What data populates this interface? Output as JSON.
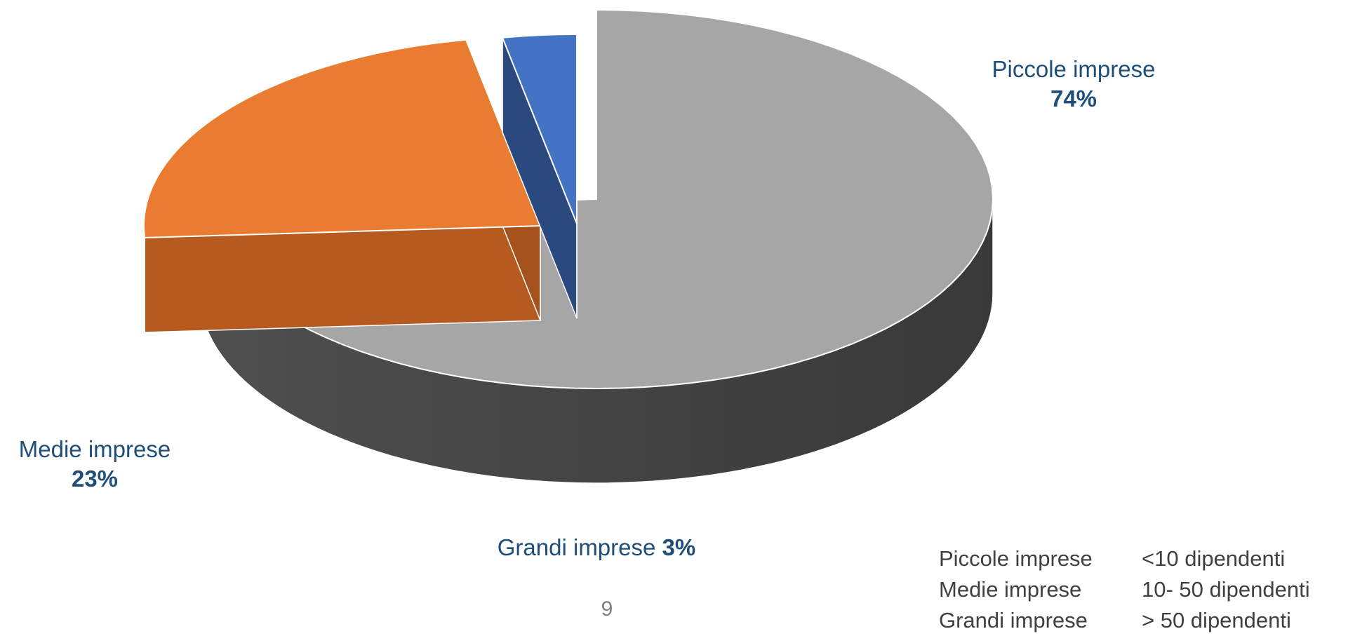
{
  "chart_data": {
    "type": "pie",
    "title": "",
    "slices": [
      {
        "label": "Piccole imprese",
        "value": 74,
        "display": "74%",
        "color": "#a6a6a6",
        "side_color": "#454545"
      },
      {
        "label": "Medie imprese",
        "value": 23,
        "display": "23%",
        "color": "#e97c30",
        "side_color": "#b65a1f"
      },
      {
        "label": "Grandi imprese",
        "value": 3,
        "display": "3%",
        "color": "#4472c4",
        "side_color": "#2a4a7f"
      }
    ],
    "style": "3d-exploded",
    "legend_position": "bottom-right"
  },
  "size_legend": [
    {
      "category": "Piccole imprese",
      "definition": "<10 dipendenti"
    },
    {
      "category": "Medie imprese",
      "definition": "10- 50 dipendenti"
    },
    {
      "category": "Grandi imprese",
      "definition": "> 50 dipendenti"
    }
  ],
  "page_number": "9"
}
